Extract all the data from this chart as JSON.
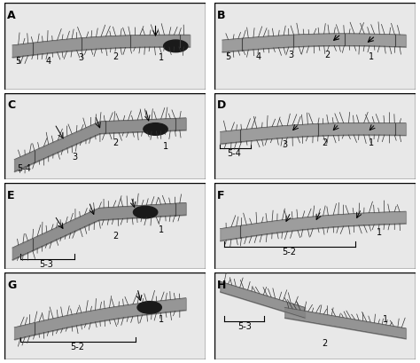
{
  "figure_width": 4.74,
  "figure_height": 4.1,
  "dpi": 100,
  "nrows": 4,
  "ncols": 2,
  "panel_labels": [
    "A",
    "B",
    "C",
    "D",
    "E",
    "F",
    "G",
    "H"
  ],
  "background_color": "#ffffff",
  "label_fontsize": 9,
  "segment_fontsize": 7,
  "panel_bg": "#e8e8e8",
  "bristle_color": "#333333",
  "body_edge_color": "#555555",
  "dark_patch_color": "#1a1a1a",
  "seg_div_color": "#444444",
  "bracket_color": "#000000",
  "arrow_color": "#000000"
}
